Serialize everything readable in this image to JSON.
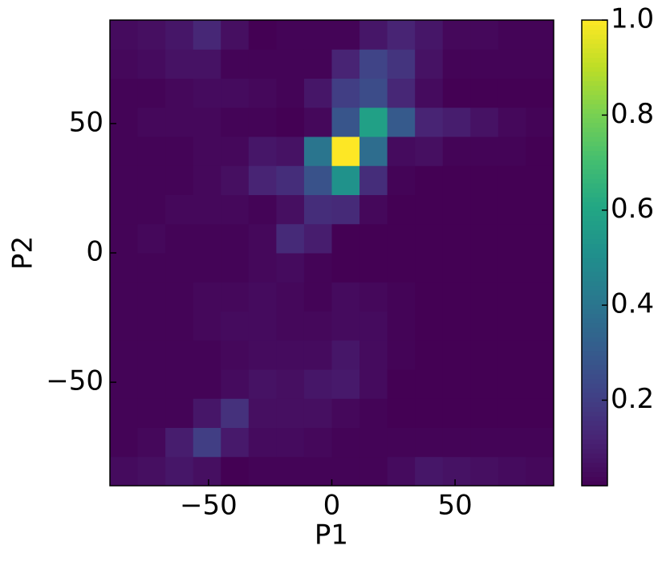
{
  "chart_data": {
    "type": "heatmap",
    "xlabel": "P1",
    "ylabel": "P2",
    "xlim": [
      -90,
      90
    ],
    "ylim": [
      -90,
      90
    ],
    "xticks": [
      {
        "value": -50,
        "label": "−50"
      },
      0,
      50
    ],
    "yticks": [
      {
        "value": -50,
        "label": "−50"
      },
      0,
      50
    ],
    "xbins": [
      -90,
      -78.75,
      -67.5,
      -56.25,
      -45,
      -33.75,
      -22.5,
      -11.25,
      0,
      11.25,
      22.5,
      33.75,
      45,
      56.25,
      67.5,
      78.75,
      90
    ],
    "ybins": [
      -90,
      -78.75,
      -67.5,
      -56.25,
      -45,
      -33.75,
      -22.5,
      -11.25,
      0,
      11.25,
      22.5,
      33.75,
      45,
      56.25,
      67.5,
      78.75,
      90
    ],
    "z": [
      [
        0.05,
        0.06,
        0.08,
        0.06,
        0.02,
        0.03,
        0.03,
        0.03,
        0.03,
        0.03,
        0.05,
        0.08,
        0.07,
        0.06,
        0.05,
        0.04
      ],
      [
        0.03,
        0.04,
        0.1,
        0.2,
        0.09,
        0.05,
        0.05,
        0.04,
        0.03,
        0.03,
        0.03,
        0.03,
        0.03,
        0.03,
        0.03,
        0.03
      ],
      [
        0.03,
        0.03,
        0.03,
        0.08,
        0.16,
        0.06,
        0.06,
        0.06,
        0.04,
        0.03,
        0.02,
        0.02,
        0.02,
        0.02,
        0.02,
        0.02
      ],
      [
        0.03,
        0.03,
        0.03,
        0.03,
        0.05,
        0.07,
        0.06,
        0.08,
        0.09,
        0.05,
        0.02,
        0.02,
        0.02,
        0.02,
        0.02,
        0.02
      ],
      [
        0.03,
        0.03,
        0.03,
        0.03,
        0.04,
        0.05,
        0.05,
        0.05,
        0.08,
        0.05,
        0.03,
        0.02,
        0.02,
        0.02,
        0.02,
        0.02
      ],
      [
        0.03,
        0.03,
        0.03,
        0.04,
        0.05,
        0.05,
        0.04,
        0.04,
        0.05,
        0.05,
        0.03,
        0.02,
        0.02,
        0.02,
        0.02,
        0.02
      ],
      [
        0.03,
        0.03,
        0.03,
        0.04,
        0.04,
        0.05,
        0.04,
        0.03,
        0.05,
        0.04,
        0.03,
        0.02,
        0.02,
        0.02,
        0.02,
        0.02
      ],
      [
        0.03,
        0.03,
        0.03,
        0.03,
        0.03,
        0.04,
        0.05,
        0.03,
        0.02,
        0.02,
        0.02,
        0.02,
        0.02,
        0.02,
        0.02,
        0.02
      ],
      [
        0.03,
        0.04,
        0.03,
        0.03,
        0.03,
        0.04,
        0.14,
        0.1,
        0.02,
        0.02,
        0.02,
        0.02,
        0.02,
        0.02,
        0.02,
        0.02
      ],
      [
        0.03,
        0.03,
        0.04,
        0.04,
        0.04,
        0.03,
        0.06,
        0.15,
        0.14,
        0.04,
        0.02,
        0.02,
        0.02,
        0.02,
        0.02,
        0.02
      ],
      [
        0.03,
        0.03,
        0.03,
        0.04,
        0.06,
        0.12,
        0.15,
        0.27,
        0.52,
        0.15,
        0.03,
        0.02,
        0.02,
        0.02,
        0.02,
        0.02
      ],
      [
        0.03,
        0.03,
        0.03,
        0.04,
        0.04,
        0.08,
        0.07,
        0.4,
        1.0,
        0.37,
        0.05,
        0.06,
        0.03,
        0.03,
        0.03,
        0.02
      ],
      [
        0.03,
        0.04,
        0.04,
        0.04,
        0.03,
        0.03,
        0.02,
        0.04,
        0.28,
        0.58,
        0.3,
        0.12,
        0.1,
        0.07,
        0.04,
        0.03
      ],
      [
        0.03,
        0.03,
        0.04,
        0.05,
        0.05,
        0.04,
        0.03,
        0.08,
        0.2,
        0.25,
        0.13,
        0.05,
        0.02,
        0.02,
        0.02,
        0.02
      ],
      [
        0.04,
        0.05,
        0.07,
        0.07,
        0.03,
        0.03,
        0.03,
        0.03,
        0.12,
        0.22,
        0.17,
        0.07,
        0.03,
        0.03,
        0.03,
        0.03
      ],
      [
        0.05,
        0.06,
        0.08,
        0.13,
        0.06,
        0.02,
        0.03,
        0.03,
        0.03,
        0.08,
        0.12,
        0.08,
        0.04,
        0.04,
        0.03,
        0.03
      ]
    ],
    "colormap": "viridis",
    "clim": [
      0.02,
      1
    ],
    "cticks": [
      0.2,
      0.4,
      0.6,
      0.8,
      {
        "value": 1,
        "label": "1.0"
      }
    ]
  }
}
